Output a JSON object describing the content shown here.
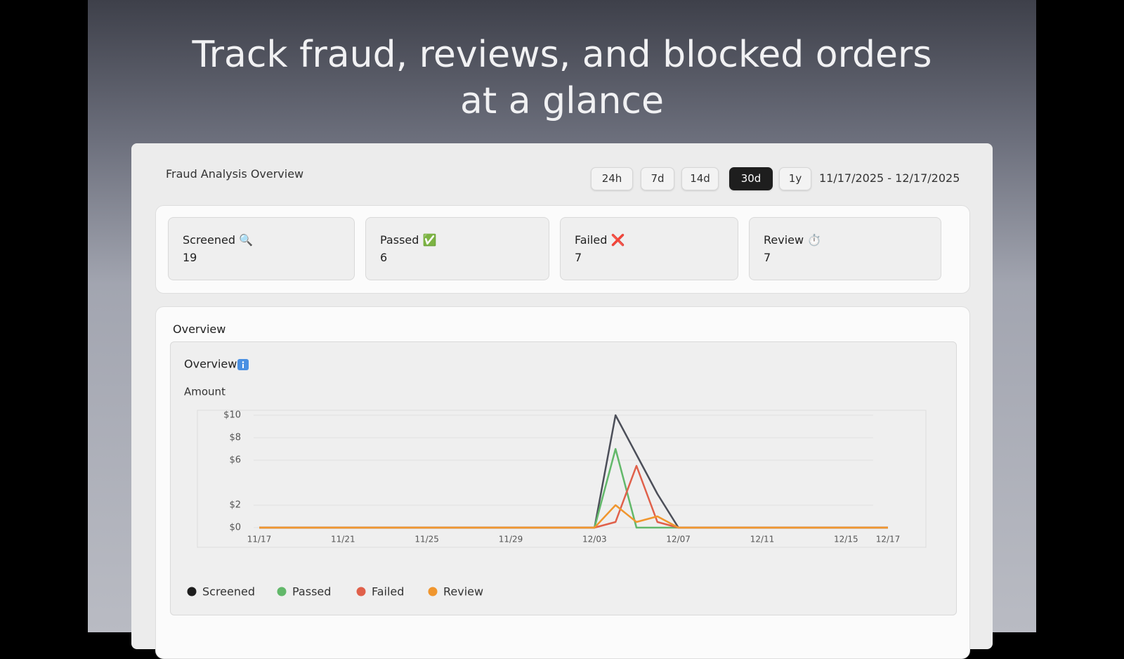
{
  "headline": [
    "Track fraud, reviews, and blocked orders",
    "at a glance"
  ],
  "card_title": "Fraud Analysis Overview",
  "ranges": [
    {
      "label": "24h"
    },
    {
      "label": "7d"
    },
    {
      "label": "14d"
    },
    {
      "label": "30d",
      "selected": true
    },
    {
      "label": "1y"
    }
  ],
  "date_range": "11/17/2025 - 12/17/2025",
  "stats": [
    {
      "label": "Screened",
      "icon": "🔍",
      "value": 19
    },
    {
      "label": "Passed",
      "icon": "✅",
      "value": 6
    },
    {
      "label": "Failed",
      "icon": "❌",
      "value": 7
    },
    {
      "label": "Review",
      "icon": "⏱️",
      "value": 7
    }
  ],
  "section_title": "Overview",
  "chart_data": {
    "type": "line",
    "title": "Overview",
    "y_label": "Amount",
    "categories": [
      "11/17",
      null,
      null,
      null,
      "11/21",
      null,
      null,
      null,
      "11/25",
      null,
      null,
      null,
      "11/29",
      null,
      null,
      null,
      "12/03",
      null,
      null,
      null,
      "12/07",
      null,
      null,
      null,
      "12/11",
      null,
      null,
      null,
      "12/15",
      null,
      "12/17"
    ],
    "series": [
      {
        "name": "Screened",
        "color": "#4c4f59",
        "values": [
          0,
          0,
          0,
          0,
          0,
          0,
          0,
          0,
          0,
          0,
          0,
          0,
          0,
          0,
          0,
          0,
          0,
          10,
          6.5,
          3,
          0,
          0,
          0,
          0,
          0,
          0,
          0,
          0,
          0,
          0,
          0
        ]
      },
      {
        "name": "Passed",
        "color": "#62b86a",
        "values": [
          0,
          0,
          0,
          0,
          0,
          0,
          0,
          0,
          0,
          0,
          0,
          0,
          0,
          0,
          0,
          0,
          0,
          7,
          0,
          0,
          0,
          0,
          0,
          0,
          0,
          0,
          0,
          0,
          0,
          0,
          0
        ]
      },
      {
        "name": "Failed",
        "color": "#e0604a",
        "values": [
          0,
          0,
          0,
          0,
          0,
          0,
          0,
          0,
          0,
          0,
          0,
          0,
          0,
          0,
          0,
          0,
          0,
          0.5,
          5.5,
          0.5,
          0,
          0,
          0,
          0,
          0,
          0,
          0,
          0,
          0,
          0,
          0
        ]
      },
      {
        "name": "Review",
        "color": "#f0962e",
        "values": [
          0,
          0,
          0,
          0,
          0,
          0,
          0,
          0,
          0,
          0,
          0,
          0,
          0,
          0,
          0,
          0,
          0,
          2,
          0.5,
          1,
          0,
          0,
          0,
          0,
          0,
          0,
          0,
          0,
          0,
          0,
          0
        ]
      }
    ],
    "ylim": [
      0,
      10
    ],
    "yticks": [
      {
        "value": 10,
        "label": "$10"
      },
      {
        "value": 8,
        "label": "$8"
      },
      {
        "value": 6,
        "label": "$6"
      },
      {
        "value": 2,
        "label": "$2"
      },
      {
        "value": 0,
        "label": "$0"
      }
    ],
    "grid": true
  }
}
